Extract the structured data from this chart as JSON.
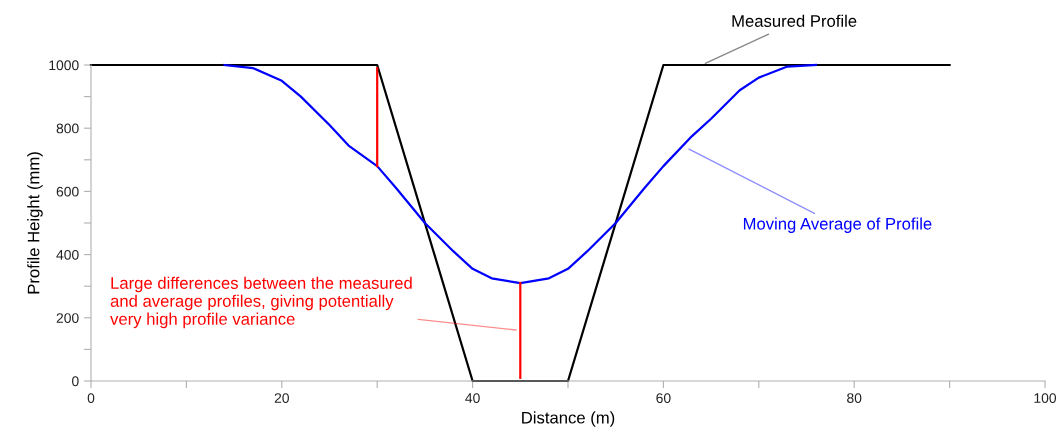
{
  "chart_data": {
    "type": "line",
    "xlabel": "Distance (m)",
    "ylabel": "Profile Height (mm)",
    "xlim": [
      0,
      100
    ],
    "ylim": [
      0,
      1000
    ],
    "xticks": [
      0,
      {
        "value": 10,
        "label": null
      },
      20,
      {
        "value": 30,
        "label": null
      },
      40,
      {
        "value": 50,
        "label": null
      },
      60,
      {
        "value": 70,
        "label": null
      },
      80,
      {
        "value": 90,
        "label": null
      },
      100
    ],
    "yticks": [
      0,
      {
        "value": 100,
        "label": null
      },
      200,
      {
        "value": 300,
        "label": null
      },
      400,
      {
        "value": 500,
        "label": null
      },
      600,
      {
        "value": 700,
        "label": null
      },
      800,
      {
        "value": 900,
        "label": null
      },
      1000
    ],
    "grid": false,
    "marker": "none",
    "line_style": "solid",
    "series": [
      {
        "color": "#000000",
        "x": [
          0,
          30,
          40,
          50,
          60,
          90
        ],
        "values": [
          1000,
          1000,
          0,
          0,
          1000,
          1000
        ]
      },
      {
        "color": "#0000ff",
        "x": [
          14,
          17,
          20,
          22,
          25,
          27,
          30,
          32,
          35,
          38,
          40,
          42,
          45,
          48,
          50,
          52,
          55,
          58,
          60,
          63,
          65,
          68,
          70,
          73,
          76
        ],
        "values": [
          1000,
          990,
          950,
          900,
          810,
          745,
          680,
          610,
          500,
          410,
          355,
          325,
          310,
          325,
          355,
          410,
          500,
          610,
          680,
          775,
          830,
          920,
          960,
          995,
          1000
        ]
      },
      {
        "color": "#ff0000",
        "x": [
          30,
          30
        ],
        "values": [
          680,
          990
        ]
      },
      {
        "color": "#ff0000",
        "x": [
          45,
          45
        ],
        "values": [
          10,
          310
        ]
      }
    ],
    "annotations": [
      {
        "text": "Measured Profile",
        "x": 64,
        "y": 1000
      },
      {
        "text": "Moving Average of Profile",
        "x": 62.3,
        "y": 740
      },
      {
        "text": "Large differences between the measured\nand average profiles, giving potentially\nvery high profile variance",
        "x": 45,
        "y": 160
      }
    ]
  }
}
